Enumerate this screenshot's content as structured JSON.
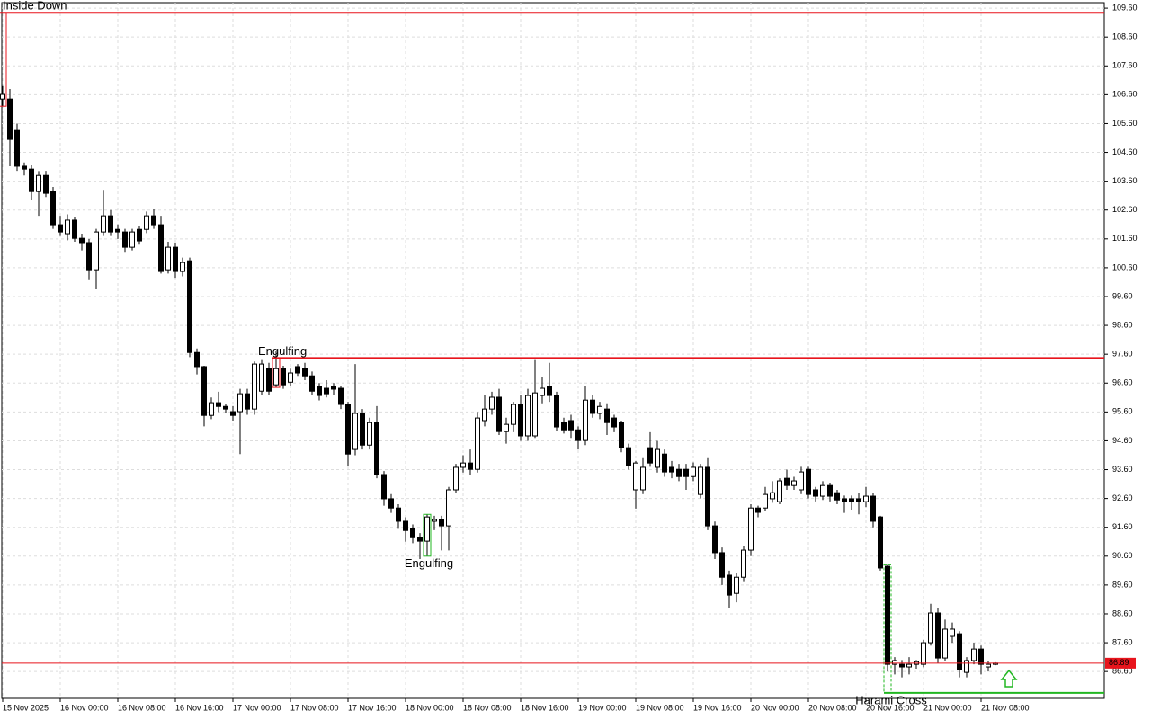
{
  "chart_data": {
    "type": "candlestick",
    "up_color": "#ffffff",
    "down_color": "#000000",
    "grid": true,
    "ylim": [
      85.67,
      109.79
    ],
    "yticks": [
      {
        "value": 109.6,
        "label": "109.60"
      },
      {
        "value": 108.6,
        "label": "108.60"
      },
      {
        "value": 107.6,
        "label": "107.60"
      },
      {
        "value": 106.6,
        "label": "106.60"
      },
      {
        "value": 105.6,
        "label": "105.60"
      },
      {
        "value": 104.6,
        "label": "104.60"
      },
      {
        "value": 103.6,
        "label": "103.60"
      },
      {
        "value": 102.6,
        "label": "102.60"
      },
      {
        "value": 101.6,
        "label": "101.60"
      },
      {
        "value": 100.6,
        "label": "100.60"
      },
      {
        "value": 99.6,
        "label": "99.60"
      },
      {
        "value": 98.6,
        "label": "98.60"
      },
      {
        "value": 97.6,
        "label": "97.60"
      },
      {
        "value": 96.6,
        "label": "96.60"
      },
      {
        "value": 95.6,
        "label": "95.60"
      },
      {
        "value": 94.6,
        "label": "94.60"
      },
      {
        "value": 93.6,
        "label": "93.60"
      },
      {
        "value": 92.6,
        "label": "92.60"
      },
      {
        "value": 91.6,
        "label": "91.60"
      },
      {
        "value": 90.6,
        "label": "90.60"
      },
      {
        "value": 89.6,
        "label": "89.60"
      },
      {
        "value": 88.6,
        "label": "88.60"
      },
      {
        "value": 87.6,
        "label": "87.60"
      },
      {
        "value": 86.6,
        "label": "86.60"
      }
    ],
    "categories": [
      "15 Nov 2025",
      null,
      null,
      null,
      null,
      null,
      null,
      null,
      "16 Nov 00:00",
      null,
      null,
      null,
      null,
      null,
      null,
      null,
      "16 Nov 08:00",
      null,
      null,
      null,
      null,
      null,
      null,
      null,
      "16 Nov 16:00",
      null,
      null,
      null,
      null,
      null,
      null,
      null,
      "17 Nov 00:00",
      null,
      null,
      null,
      null,
      null,
      null,
      null,
      "17 Nov 08:00",
      null,
      null,
      null,
      null,
      null,
      null,
      null,
      "17 Nov 16:00",
      null,
      null,
      null,
      null,
      null,
      null,
      null,
      "18 Nov 00:00",
      null,
      null,
      null,
      null,
      null,
      null,
      null,
      "18 Nov 08:00",
      null,
      null,
      null,
      null,
      null,
      null,
      null,
      "18 Nov 16:00",
      null,
      null,
      null,
      null,
      null,
      null,
      null,
      "19 Nov 00:00",
      null,
      null,
      null,
      null,
      null,
      null,
      null,
      "19 Nov 08:00",
      null,
      null,
      null,
      null,
      null,
      null,
      null,
      "19 Nov 16:00",
      null,
      null,
      null,
      null,
      null,
      null,
      null,
      "20 Nov 00:00",
      null,
      null,
      null,
      null,
      null,
      null,
      null,
      "20 Nov 08:00",
      null,
      null,
      null,
      null,
      null,
      null,
      null,
      "20 Nov 16:00",
      null,
      null,
      null,
      null,
      null,
      null,
      null,
      "21 Nov 00:00",
      null,
      null,
      null,
      null,
      null,
      null,
      null,
      "21 Nov 08:00",
      null,
      null
    ],
    "open": [
      106.45,
      106.45,
      105.36,
      104.12,
      104.02,
      103.24,
      103.8,
      103.24,
      102.09,
      101.78,
      102.25,
      101.62,
      101.47,
      100.53,
      101.84,
      102.4,
      101.93,
      101.84,
      101.31,
      101.93,
      101.93,
      102.4,
      102.09,
      100.53,
      101.31,
      100.47,
      100.84,
      97.66,
      97.17,
      95.48,
      95.92,
      95.79,
      95.61,
      95.61,
      96.23,
      95.7,
      96.32,
      97.1,
      96.54,
      97.1,
      96.63,
      97.17,
      97.1,
      96.85,
      96.48,
      96.42,
      96.48,
      96.42,
      95.86,
      94.3,
      95.55,
      94.45,
      95.23,
      93.43,
      92.59,
      92.27,
      91.81,
      91.56,
      91.24,
      91.12,
      91.81,
      91.87,
      91.65,
      92.9,
      93.68,
      93.83,
      93.61,
      95.3,
      95.7,
      96.11,
      94.92,
      95.17,
      95.86,
      94.77,
      94.77,
      96.17,
      96.48,
      96.17,
      95.23,
      95.3,
      94.98,
      94.61,
      96.01,
      95.55,
      95.7,
      95.39,
      95.23,
      94.36,
      92.9,
      92.9,
      94.36,
      93.68,
      94.14,
      93.68,
      93.61,
      93.61,
      93.36,
      92.74,
      93.68,
      91.65,
      90.72,
      89.94,
      89.31,
      89.87,
      90.81,
      92.27,
      92.27,
      92.59,
      92.49,
      93.3,
      93.05,
      92.9,
      93.61,
      92.9,
      92.68,
      93.05,
      92.8,
      92.59,
      92.59,
      92.59,
      92.49,
      92.68,
      91.96,
      90.25,
      86.85,
      86.85,
      86.76,
      86.85,
      86.85,
      87.6,
      88.63,
      87.07,
      87.82,
      87.91,
      86.57,
      86.98,
      87.38,
      86.76,
      86.85
    ],
    "high": [
      106.9,
      106.8,
      105.6,
      104.25,
      104.15,
      103.95,
      103.96,
      103.4,
      102.4,
      102.45,
      102.35,
      101.78,
      101.6,
      101.95,
      103.3,
      102.6,
      102.1,
      101.95,
      101.95,
      102.05,
      102.55,
      102.65,
      102.4,
      101.5,
      101.47,
      100.95,
      100.95,
      97.8,
      97.2,
      96.1,
      96.3,
      95.86,
      95.8,
      96.4,
      96.4,
      97.35,
      97.4,
      97.3,
      97.7,
      97.2,
      97.1,
      97.26,
      97.3,
      97.0,
      96.6,
      96.7,
      96.6,
      96.5,
      95.95,
      97.26,
      95.7,
      95.4,
      95.8,
      93.55,
      92.75,
      92.4,
      91.95,
      91.7,
      91.4,
      92.05,
      92.0,
      92.0,
      93.0,
      93.8,
      94.1,
      94.3,
      95.6,
      96.2,
      96.3,
      96.4,
      95.4,
      95.95,
      96.2,
      96.4,
      97.4,
      96.8,
      97.3,
      96.3,
      95.4,
      95.5,
      95.1,
      96.5,
      96.2,
      95.95,
      95.9,
      95.5,
      95.3,
      94.5,
      93.9,
      94.0,
      94.9,
      94.6,
      94.3,
      93.9,
      93.8,
      93.8,
      93.85,
      93.8,
      94.0,
      91.8,
      90.9,
      90.1,
      90.0,
      90.95,
      92.4,
      92.35,
      93.0,
      93.2,
      93.3,
      93.6,
      93.35,
      93.7,
      93.7,
      93.0,
      93.2,
      93.15,
      92.9,
      92.7,
      92.7,
      92.8,
      93.0,
      92.8,
      92.0,
      90.3,
      87.1,
      87.0,
      87.1,
      87.0,
      87.7,
      88.95,
      88.8,
      88.4,
      88.3,
      88.0,
      87.1,
      87.6,
      87.5,
      86.95,
      86.92
    ],
    "low": [
      106.2,
      104.12,
      103.96,
      103.8,
      102.95,
      102.4,
      103.05,
      101.95,
      101.7,
      101.55,
      101.5,
      101.2,
      100.2,
      99.85,
      101.7,
      101.7,
      101.6,
      101.15,
      101.2,
      101.4,
      101.8,
      101.95,
      100.4,
      100.4,
      100.25,
      100.3,
      97.5,
      96.9,
      95.1,
      95.35,
      95.6,
      95.55,
      95.3,
      94.14,
      95.5,
      95.5,
      96.2,
      96.2,
      96.45,
      96.4,
      96.5,
      96.85,
      96.7,
      96.2,
      96.0,
      96.1,
      96.2,
      95.7,
      93.74,
      94.1,
      94.3,
      94.3,
      93.3,
      92.35,
      92.1,
      91.55,
      91.1,
      91.05,
      90.5,
      90.6,
      91.5,
      90.8,
      90.8,
      92.8,
      93.5,
      93.4,
      93.5,
      95.1,
      95.5,
      94.8,
      94.5,
      94.9,
      94.6,
      94.6,
      94.7,
      95.9,
      95.95,
      94.95,
      94.85,
      94.7,
      94.3,
      94.45,
      95.4,
      95.35,
      94.8,
      94.9,
      94.2,
      93.6,
      92.25,
      92.75,
      93.7,
      93.5,
      93.35,
      93.3,
      93.2,
      92.9,
      93.2,
      92.6,
      91.5,
      90.5,
      89.6,
      88.8,
      89.0,
      89.7,
      90.6,
      91.95,
      92.15,
      92.45,
      92.4,
      92.9,
      92.9,
      92.75,
      92.6,
      92.5,
      92.55,
      92.5,
      92.4,
      92.1,
      92.2,
      92.05,
      92.3,
      91.6,
      90.1,
      86.6,
      86.5,
      86.4,
      86.5,
      86.7,
      86.75,
      87.5,
      86.9,
      86.95,
      87.6,
      86.4,
      86.4,
      86.85,
      86.5,
      86.6,
      86.82
    ],
    "close": [
      106.61,
      105.05,
      104.12,
      104.02,
      103.24,
      103.8,
      103.18,
      102.09,
      101.84,
      102.25,
      101.62,
      101.47,
      100.53,
      101.84,
      102.4,
      101.84,
      101.84,
      101.31,
      101.84,
      101.53,
      102.4,
      102.09,
      100.47,
      101.31,
      100.47,
      100.78,
      97.66,
      97.17,
      95.48,
      95.92,
      95.79,
      95.7,
      95.48,
      96.23,
      95.7,
      97.26,
      97.26,
      96.32,
      97.1,
      96.54,
      96.95,
      96.95,
      96.85,
      96.32,
      96.17,
      96.23,
      96.39,
      95.86,
      94.14,
      95.55,
      94.45,
      95.23,
      93.43,
      92.59,
      92.27,
      91.81,
      91.49,
      91.24,
      91.12,
      91.96,
      91.87,
      91.65,
      92.9,
      93.68,
      93.83,
      93.61,
      95.39,
      95.7,
      96.11,
      94.92,
      95.17,
      95.86,
      94.77,
      96.17,
      96.26,
      96.42,
      96.17,
      95.08,
      94.98,
      94.98,
      94.61,
      96.01,
      95.55,
      95.79,
      95.23,
      95.08,
      94.36,
      93.74,
      93.83,
      93.68,
      93.83,
      94.3,
      93.52,
      93.52,
      93.36,
      93.36,
      93.68,
      93.68,
      91.65,
      90.72,
      89.87,
      89.25,
      89.87,
      90.81,
      92.27,
      92.12,
      92.74,
      92.8,
      93.21,
      93.05,
      93.21,
      93.52,
      92.74,
      92.68,
      93.05,
      92.68,
      92.55,
      92.49,
      92.49,
      92.49,
      92.68,
      91.81,
      90.19,
      86.85,
      86.98,
      86.76,
      86.85,
      86.94,
      87.6,
      88.63,
      87.07,
      88.07,
      88.07,
      86.66,
      86.98,
      87.38,
      86.85,
      86.85,
      86.89
    ],
    "last_price": 86.89,
    "last_price_color": "#e8141c",
    "patterns": [
      {
        "label": "Inside Down",
        "color": "#e8141c",
        "candle": 0,
        "level": 109.44
      },
      {
        "label": "Engulfing",
        "color": "#e8141c",
        "candle": 38,
        "level": 97.47
      },
      {
        "label": "Engulfing",
        "color": "#22b722",
        "candle": 59
      },
      {
        "label": "Harami Cross",
        "color": "#22b722",
        "candle": 123,
        "level": 85.86
      }
    ]
  }
}
